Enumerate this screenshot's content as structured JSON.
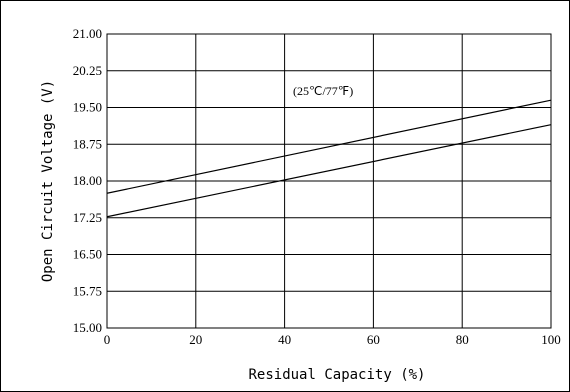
{
  "chart_data": {
    "type": "line",
    "title": "",
    "xlabel": "Residual Capacity (%)",
    "ylabel": "Open Circuit Voltage (V)",
    "xlim": [
      0,
      100
    ],
    "ylim": [
      15.0,
      21.0
    ],
    "x_ticks": [
      0,
      20,
      40,
      60,
      80,
      100
    ],
    "x_tick_labels": [
      "0",
      "20",
      "40",
      "60",
      "80",
      "100"
    ],
    "y_ticks": [
      15.0,
      15.75,
      16.5,
      17.25,
      18.0,
      18.75,
      19.5,
      20.25,
      21.0
    ],
    "y_tick_labels": [
      "15.00",
      "15.75",
      "16.50",
      "17.25",
      "18.00",
      "18.75",
      "19.50",
      "20.25",
      "21.00"
    ],
    "grid": true,
    "annotation": "(25℃/77℉)",
    "series": [
      {
        "x": [
          0,
          100
        ],
        "y": [
          17.75,
          19.65
        ]
      },
      {
        "x": [
          0,
          100
        ],
        "y": [
          17.27,
          19.15
        ]
      }
    ],
    "line_color": "#000000"
  }
}
